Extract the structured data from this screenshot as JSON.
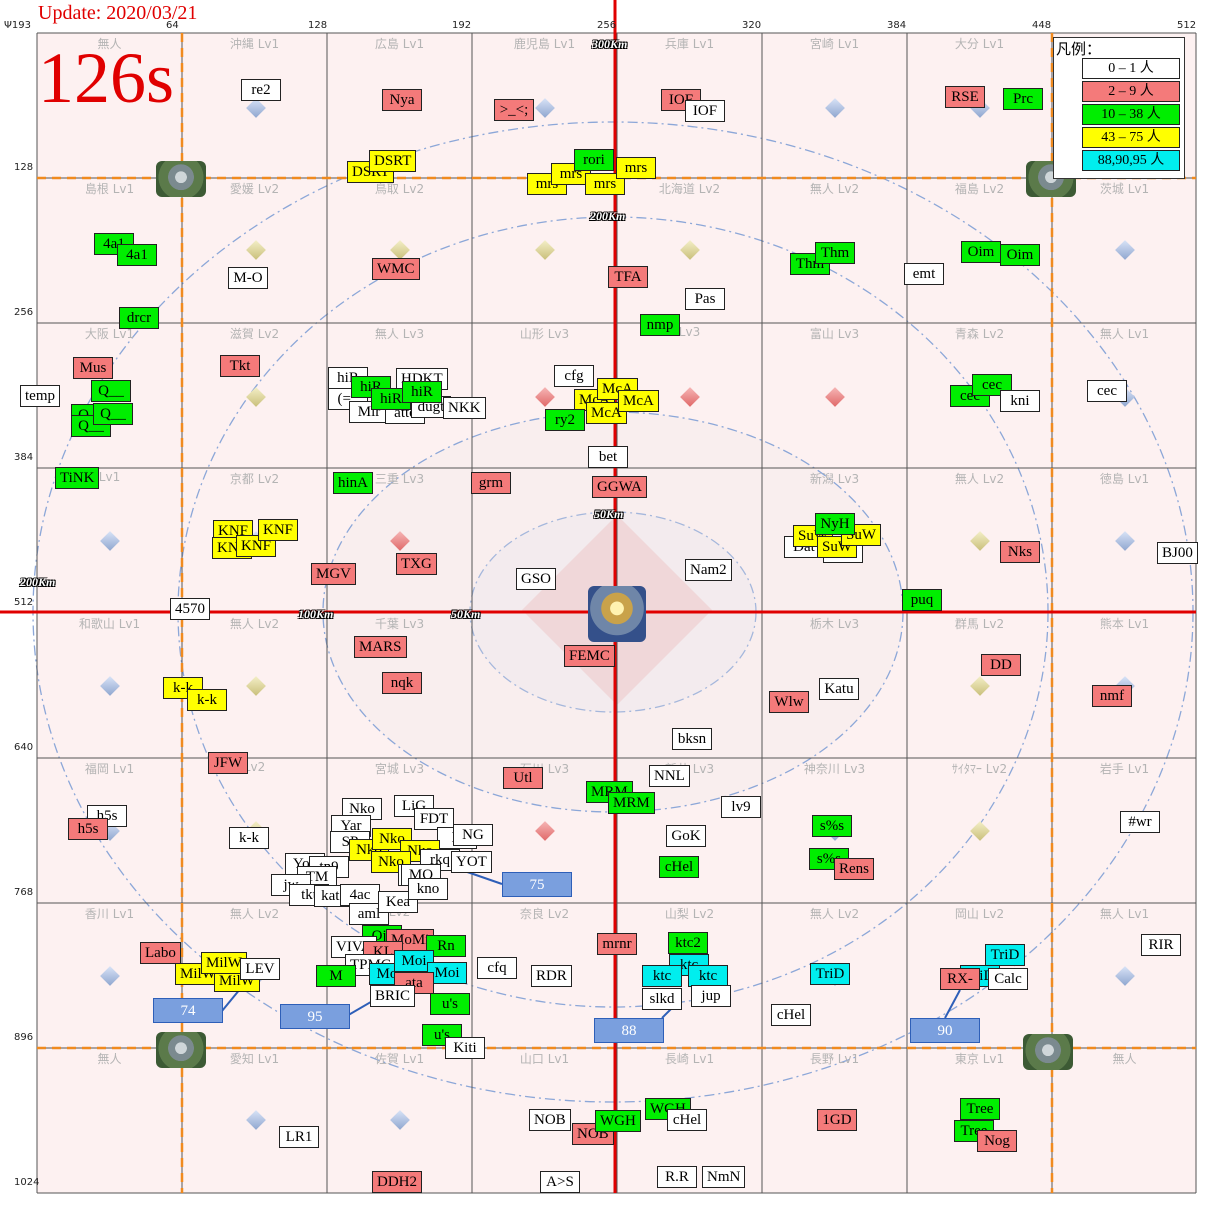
{
  "header": {
    "update": "Update: 2020/03/21",
    "timer": "126s"
  },
  "legend": {
    "title": "凡例：",
    "items": [
      {
        "label": "0 – 1 人",
        "color": "#ffffff"
      },
      {
        "label": "2 – 9 人",
        "color": "#f47a7a"
      },
      {
        "label": "10 – 38 人",
        "color": "#00ee00"
      },
      {
        "label": "43 – 75 人",
        "color": "#ffff00"
      },
      {
        "label": "88,90,95 人",
        "color": "#00eeee"
      }
    ]
  },
  "colors": {
    "grid_line": "#555555",
    "main_axis": "#e00000",
    "zone_border": "#f08a1e",
    "ring": "#8ca7d8",
    "cell_tint": "#fdf1f1",
    "center_tint": "#f7b9b9"
  },
  "axes": {
    "corner": "Ψ193",
    "top": [
      "64",
      "128",
      "192",
      "256",
      "320",
      "384",
      "448",
      "512"
    ],
    "left": [
      "128",
      "256",
      "384",
      "512",
      "640",
      "768",
      "896",
      "1024"
    ]
  },
  "distances": [
    "300Km",
    "200Km",
    "50Km",
    "200Km",
    "100Km",
    "50Km"
  ],
  "cells": [
    [
      "無人",
      "沖縄 Lv1",
      "広島 Lv1",
      "鹿児島 Lv1",
      "兵庫 Lv1",
      "宮崎 Lv1",
      "大分 Lv1",
      ""
    ],
    [
      "島根 Lv1",
      "愛媛 Lv2",
      "鳥取 Lv2",
      "無人",
      "北海道 Lv2",
      "無人 Lv2",
      "福島 Lv2",
      "茨城 Lv1"
    ],
    [
      "大阪 Lv1",
      "滋賀 Lv2",
      "無人 Lv3",
      "山形 Lv3",
      "Lv3",
      "富山 Lv3",
      "青森 Lv2",
      "無人 Lv1"
    ],
    [
      "Lv1",
      "京都 Lv2",
      "三重 Lv3",
      "",
      "",
      "新潟 Lv3",
      "無人 Lv2",
      "徳島 Lv1"
    ],
    [
      "和歌山 Lv1",
      "無人 Lv2",
      "千葉 Lv3",
      "",
      "",
      "栃木 Lv3",
      "群馬 Lv2",
      "熊本 Lv1"
    ],
    [
      "福岡 Lv1",
      "Lv2",
      "宮城 Lv3",
      "石川 Lv3",
      "新井 Lv3",
      "神奈川 Lv3",
      "ｻｲﾀﾏｰ Lv2",
      "岩手 Lv1"
    ],
    [
      "香川 Lv1",
      "無人 Lv2",
      "Lv2",
      "奈良 Lv2",
      "山梨 Lv2",
      "無人 Lv2",
      "岡山 Lv2",
      "無人 Lv1"
    ],
    [
      "無人",
      "愛知 Lv1",
      "佐賀 Lv1",
      "山口 Lv1",
      "長崎 Lv1",
      "長野 Lv1",
      "東京 Lv1",
      "無人"
    ]
  ],
  "tags": [
    {
      "text": "re2",
      "c": "white"
    },
    {
      "text": "Nya",
      "c": "red"
    },
    {
      "text": ">_<;",
      "c": "red"
    },
    {
      "text": "IOF",
      "c": "red"
    },
    {
      "text": "IOF",
      "c": "white"
    },
    {
      "text": "RSE",
      "c": "red"
    },
    {
      "text": "Prc",
      "c": "green"
    },
    {
      "text": "DSRT",
      "c": "yellow"
    },
    {
      "text": "DSRT",
      "c": "yellow"
    },
    {
      "text": "mrs",
      "c": "yellow"
    },
    {
      "text": "mrs",
      "c": "yellow"
    },
    {
      "text": "mrs",
      "c": "yellow"
    },
    {
      "text": "mrs",
      "c": "yellow"
    },
    {
      "text": "rori",
      "c": "green"
    },
    {
      "text": "4a1",
      "c": "green"
    },
    {
      "text": "4a1",
      "c": "green"
    },
    {
      "text": "M-O",
      "c": "white"
    },
    {
      "text": "WMC",
      "c": "red"
    },
    {
      "text": "TFA",
      "c": "red"
    },
    {
      "text": "Pas",
      "c": "white"
    },
    {
      "text": "Thm",
      "c": "green"
    },
    {
      "text": "Thm",
      "c": "green"
    },
    {
      "text": "emt",
      "c": "white"
    },
    {
      "text": "Oim",
      "c": "green"
    },
    {
      "text": "Oim",
      "c": "green"
    },
    {
      "text": "drcr",
      "c": "green"
    },
    {
      "text": "nmp",
      "c": "green"
    },
    {
      "text": "Mus",
      "c": "red"
    },
    {
      "text": "temp",
      "c": "white"
    },
    {
      "text": "Q__",
      "c": "green"
    },
    {
      "text": "Q__",
      "c": "green"
    },
    {
      "text": "Q__",
      "c": "green"
    },
    {
      "text": "Q__",
      "c": "green"
    },
    {
      "text": "Tkt",
      "c": "red"
    },
    {
      "text": "hiR",
      "c": "white"
    },
    {
      "text": "HDKT",
      "c": "white"
    },
    {
      "text": "(=_",
      "c": "white"
    },
    {
      "text": "Mir",
      "c": "white"
    },
    {
      "text": "atte",
      "c": "white"
    },
    {
      "text": "dugt",
      "c": "white"
    },
    {
      "text": "hiR",
      "c": "green"
    },
    {
      "text": "hiR",
      "c": "green"
    },
    {
      "text": "hiR",
      "c": "green"
    },
    {
      "text": "NKK",
      "c": "white"
    },
    {
      "text": "cfg",
      "c": "white"
    },
    {
      "text": "McA",
      "c": "yellow"
    },
    {
      "text": "McA",
      "c": "yellow"
    },
    {
      "text": "McA",
      "c": "yellow"
    },
    {
      "text": "McA",
      "c": "yellow"
    },
    {
      "text": "ry2",
      "c": "green"
    },
    {
      "text": "cec",
      "c": "green"
    },
    {
      "text": "cec",
      "c": "green"
    },
    {
      "text": "kni",
      "c": "white"
    },
    {
      "text": "cec",
      "c": "white"
    },
    {
      "text": "bet",
      "c": "white"
    },
    {
      "text": "TiNK",
      "c": "green"
    },
    {
      "text": "hinA",
      "c": "green"
    },
    {
      "text": "grm",
      "c": "red"
    },
    {
      "text": "GGWA",
      "c": "red"
    },
    {
      "text": "KNF",
      "c": "yellow"
    },
    {
      "text": "KNF",
      "c": "yellow"
    },
    {
      "text": "KNF",
      "c": "yellow"
    },
    {
      "text": "KNF",
      "c": "yellow"
    },
    {
      "text": "MGV",
      "c": "red"
    },
    {
      "text": "TXG",
      "c": "red"
    },
    {
      "text": "Dat",
      "c": "white"
    },
    {
      "text": "Sba",
      "c": "white"
    },
    {
      "text": "SuW",
      "c": "yellow"
    },
    {
      "text": "SuW",
      "c": "yellow"
    },
    {
      "text": "SuW",
      "c": "yellow"
    },
    {
      "text": "NyH",
      "c": "green"
    },
    {
      "text": "Nks",
      "c": "red"
    },
    {
      "text": "BJ00",
      "c": "white"
    },
    {
      "text": "GSO",
      "c": "white"
    },
    {
      "text": "Nam2",
      "c": "white"
    },
    {
      "text": "4570",
      "c": "white"
    },
    {
      "text": "puq",
      "c": "green"
    },
    {
      "text": "MARS",
      "c": "red"
    },
    {
      "text": "FEMC",
      "c": "red"
    },
    {
      "text": "nqk",
      "c": "red"
    },
    {
      "text": "k-k",
      "c": "yellow"
    },
    {
      "text": "k-k",
      "c": "yellow"
    },
    {
      "text": "DD",
      "c": "red"
    },
    {
      "text": "Katu",
      "c": "white"
    },
    {
      "text": "Wlw",
      "c": "red"
    },
    {
      "text": "nmf",
      "c": "red"
    },
    {
      "text": "bksn",
      "c": "white"
    },
    {
      "text": "JFW",
      "c": "red"
    },
    {
      "text": "Utl",
      "c": "red"
    },
    {
      "text": "NNL",
      "c": "white"
    },
    {
      "text": "MRM",
      "c": "green"
    },
    {
      "text": "MRM",
      "c": "green"
    },
    {
      "text": "lv9",
      "c": "white"
    },
    {
      "text": "h5s",
      "c": "white"
    },
    {
      "text": "h5s",
      "c": "red"
    },
    {
      "text": "k-k",
      "c": "white"
    },
    {
      "text": "Nko",
      "c": "white"
    },
    {
      "text": "LiG",
      "c": "white"
    },
    {
      "text": "Yar",
      "c": "white"
    },
    {
      "text": "FDT",
      "c": "white"
    },
    {
      "text": "D",
      "c": "white"
    },
    {
      "text": "NG",
      "c": "white"
    },
    {
      "text": "SP",
      "c": "white"
    },
    {
      "text": "Nko",
      "c": "yellow"
    },
    {
      "text": "Nko",
      "c": "yellow"
    },
    {
      "text": "Nko",
      "c": "yellow"
    },
    {
      "text": "Nko",
      "c": "yellow"
    },
    {
      "text": "S",
      "c": "white"
    },
    {
      "text": "rkq",
      "c": "white"
    },
    {
      "text": "YOT",
      "c": "white"
    },
    {
      "text": "Yoo",
      "c": "white"
    },
    {
      "text": "tn9",
      "c": "white"
    },
    {
      "text": "TM",
      "c": "white"
    },
    {
      "text": "jw",
      "c": "white"
    },
    {
      "text": "tkt",
      "c": "white"
    },
    {
      "text": "kato",
      "c": "white"
    },
    {
      "text": "4ac",
      "c": "white"
    },
    {
      "text": "aml",
      "c": "white"
    },
    {
      "text": "Kea",
      "c": "white"
    },
    {
      "text": "MO",
      "c": "white"
    },
    {
      "text": "kno",
      "c": "white"
    },
    {
      "text": "Ojs",
      "c": "green"
    },
    {
      "text": "GoK",
      "c": "white"
    },
    {
      "text": "cHel",
      "c": "green"
    },
    {
      "text": "s%s",
      "c": "green"
    },
    {
      "text": "s%s",
      "c": "green"
    },
    {
      "text": "Rens",
      "c": "red"
    },
    {
      "text": "#wr",
      "c": "white"
    },
    {
      "text": "Labo",
      "c": "red"
    },
    {
      "text": "MilW",
      "c": "yellow"
    },
    {
      "text": "MilW",
      "c": "yellow"
    },
    {
      "text": "MilW",
      "c": "yellow"
    },
    {
      "text": "LEV",
      "c": "white"
    },
    {
      "text": "VIVA",
      "c": "white"
    },
    {
      "text": "MoMi",
      "c": "red"
    },
    {
      "text": "Rn",
      "c": "green"
    },
    {
      "text": "KL",
      "c": "red"
    },
    {
      "text": "TPMC",
      "c": "white"
    },
    {
      "text": "M",
      "c": "green"
    },
    {
      "text": "Moi",
      "c": "cyan"
    },
    {
      "text": "Moi",
      "c": "cyan"
    },
    {
      "text": "Moi",
      "c": "cyan"
    },
    {
      "text": "ata",
      "c": "red"
    },
    {
      "text": "BRIC",
      "c": "white"
    },
    {
      "text": "cfq",
      "c": "white"
    },
    {
      "text": "RDR",
      "c": "white"
    },
    {
      "text": "u's",
      "c": "green"
    },
    {
      "text": "u's",
      "c": "green"
    },
    {
      "text": "Kiti",
      "c": "white"
    },
    {
      "text": "mrnr",
      "c": "red"
    },
    {
      "text": "ktc2",
      "c": "green"
    },
    {
      "text": "ktc",
      "c": "cyan"
    },
    {
      "text": "ktc",
      "c": "cyan"
    },
    {
      "text": "ktc",
      "c": "cyan"
    },
    {
      "text": "slkd",
      "c": "white"
    },
    {
      "text": "jup",
      "c": "white"
    },
    {
      "text": "cHel",
      "c": "white"
    },
    {
      "text": "TriD",
      "c": "cyan"
    },
    {
      "text": "TriD",
      "c": "cyan"
    },
    {
      "text": "TriD",
      "c": "cyan"
    },
    {
      "text": "RX-",
      "c": "red"
    },
    {
      "text": "Calc",
      "c": "white"
    },
    {
      "text": "RIR",
      "c": "white"
    },
    {
      "text": "NOB",
      "c": "white"
    },
    {
      "text": "NOB",
      "c": "red"
    },
    {
      "text": "WGH",
      "c": "green"
    },
    {
      "text": "WGH",
      "c": "green"
    },
    {
      "text": "cHel",
      "c": "white"
    },
    {
      "text": "1GD",
      "c": "red"
    },
    {
      "text": "Tree",
      "c": "green"
    },
    {
      "text": "Tree",
      "c": "green"
    },
    {
      "text": "Nog",
      "c": "red"
    },
    {
      "text": "LR1",
      "c": "white"
    },
    {
      "text": "DDH2",
      "c": "red"
    },
    {
      "text": "A>S",
      "c": "white"
    },
    {
      "text": "R.R",
      "c": "white"
    },
    {
      "text": "NmN",
      "c": "white"
    }
  ],
  "counts": [
    "75",
    "74",
    "95",
    "88",
    "90"
  ]
}
